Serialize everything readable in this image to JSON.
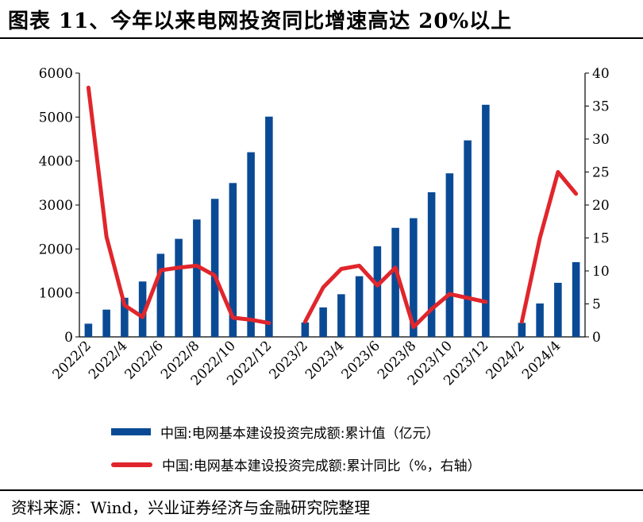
{
  "title": "图表 11、今年以来电网投资同比增速高达 20%以上",
  "source": "资料来源：Wind，兴业证券经济与金融研究院整理",
  "colors": {
    "bar": "#0a4a95",
    "line": "#e0262c"
  },
  "chart_data": {
    "type": "bar+line",
    "x": [
      "2022/2",
      "2022/3",
      "2022/4",
      "2022/5",
      "2022/6",
      "2022/7",
      "2022/8",
      "2022/9",
      "2022/10",
      "2022/11",
      "2022/12",
      "2023/1",
      "2023/2",
      "2023/3",
      "2023/4",
      "2023/5",
      "2023/6",
      "2023/7",
      "2023/8",
      "2023/9",
      "2023/10",
      "2023/11",
      "2023/12",
      "2024/1",
      "2024/2",
      "2024/3",
      "2024/4",
      "2024/5"
    ],
    "xticks": [
      "2022/2",
      "2022/4",
      "2022/6",
      "2022/8",
      "2022/10",
      "2022/12",
      "2023/2",
      "2023/4",
      "2023/6",
      "2023/8",
      "2023/10",
      "2023/12",
      "2024/2",
      "2024/4"
    ],
    "series": [
      {
        "name": "中国:电网基本建设投资完成额:累计值（亿元）",
        "type": "bar",
        "axis": "left",
        "values": [
          300,
          620,
          890,
          1260,
          1890,
          2230,
          2670,
          3140,
          3500,
          4200,
          5010,
          null,
          330,
          670,
          970,
          1380,
          2060,
          2480,
          2700,
          3290,
          3720,
          4470,
          5280,
          null,
          320,
          760,
          1230,
          1700
        ]
      },
      {
        "name": "中国:电网基本建设投资完成额:累计同比（%，右轴）",
        "type": "line",
        "axis": "right",
        "values": [
          37.8,
          15.2,
          4.8,
          3.0,
          10.1,
          10.5,
          10.8,
          9.3,
          2.9,
          2.6,
          2.1,
          null,
          2.3,
          7.5,
          10.3,
          10.8,
          7.8,
          10.5,
          1.5,
          4.2,
          6.5,
          5.9,
          5.3,
          null,
          2.3,
          15.0,
          25.0,
          21.7
        ]
      }
    ],
    "y_left": {
      "min": 0,
      "max": 6000,
      "ticks": [
        0,
        1000,
        2000,
        3000,
        4000,
        5000,
        6000
      ]
    },
    "y_right": {
      "min": 0,
      "max": 40,
      "ticks": [
        0,
        5,
        10,
        15,
        20,
        25,
        30,
        35,
        40
      ]
    },
    "legend_position": "bottom"
  }
}
